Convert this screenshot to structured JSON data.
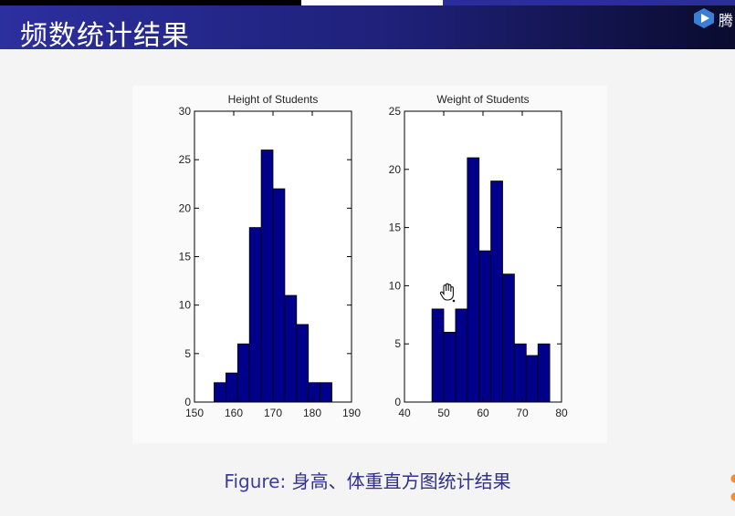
{
  "slide": {
    "title": "频数统计结果",
    "brand_text": "腾"
  },
  "caption": {
    "label": "Figure:",
    "text": "身高、体重直方图统计结果"
  },
  "colors": {
    "bar_fill": "#00008b",
    "bar_stroke": "#000000",
    "title_bar": "#2c2f9e",
    "caption": "#2f3090"
  },
  "icons": {
    "brand": "play-icon",
    "cursor": "hand-cursor-icon"
  },
  "chart_data": [
    {
      "type": "bar",
      "title": "Height of Students",
      "xlabel": "",
      "ylabel": "",
      "xlim": [
        150,
        190
      ],
      "ylim": [
        0,
        30
      ],
      "xticks": [
        150,
        160,
        170,
        180,
        190
      ],
      "yticks": [
        0,
        5,
        10,
        15,
        20,
        25,
        30
      ],
      "bin_edges": [
        155,
        158,
        161,
        164,
        167,
        170,
        173,
        176,
        179,
        182,
        185
      ],
      "values": [
        2,
        3,
        6,
        18,
        26,
        22,
        11,
        8,
        2,
        2
      ],
      "grid": false
    },
    {
      "type": "bar",
      "title": "Weight of Students",
      "xlabel": "",
      "ylabel": "",
      "xlim": [
        40,
        80
      ],
      "ylim": [
        0,
        25
      ],
      "xticks": [
        40,
        50,
        60,
        70,
        80
      ],
      "yticks": [
        0,
        5,
        10,
        15,
        20,
        25
      ],
      "bin_edges": [
        47,
        50,
        53,
        56,
        59,
        62,
        65,
        68,
        71,
        74,
        77
      ],
      "values": [
        8,
        6,
        8,
        21,
        13,
        19,
        11,
        5,
        4,
        5
      ],
      "grid": false
    }
  ]
}
